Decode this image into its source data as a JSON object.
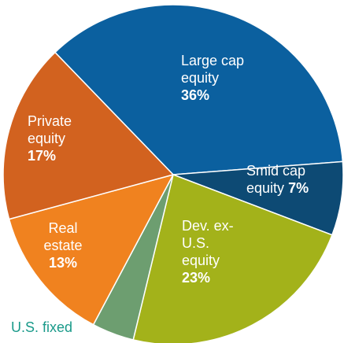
{
  "chart_data": {
    "type": "pie",
    "categories": [
      "Large cap equity",
      "Smid cap equity",
      "Dev. ex-U.S. equity",
      "U.S. fixed",
      "Real estate",
      "Private equity"
    ],
    "values": [
      36,
      7,
      23,
      4,
      13,
      17
    ],
    "value_labels": [
      "36%",
      "7%",
      "23%",
      null,
      "13%",
      "17%"
    ],
    "colors": [
      "#0b609f",
      "#0d4a74",
      "#a3b21a",
      "#6d9e70",
      "#f0821f",
      "#d2621f"
    ]
  }
}
